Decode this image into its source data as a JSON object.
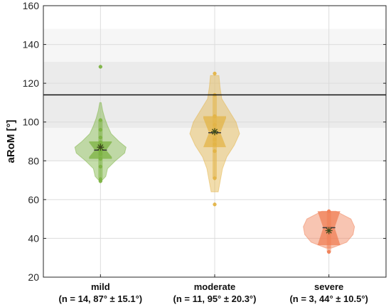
{
  "chart_data": {
    "type": "violin",
    "ylabel": "aRoM [°]",
    "ylim": [
      20,
      160
    ],
    "yticks": [
      20,
      40,
      60,
      80,
      100,
      120,
      140,
      160
    ],
    "grid": true,
    "reference_line": 114,
    "reference_bands": [
      {
        "from": 97,
        "to": 131,
        "color": "#ebebeb"
      },
      {
        "from": 80,
        "to": 148,
        "color": "#f6f6f6"
      }
    ],
    "categories": [
      {
        "name": "mild",
        "stats_label": "(n = 14, 87° ± 15.1°)",
        "color": "#7cb342",
        "median": 85.5,
        "mean": 87,
        "q1": 81,
        "q3": 90,
        "median_ci": [
          82,
          89.5
        ],
        "whisker": [
          71,
          101
        ],
        "points": [
          69.5,
          70.5,
          77,
          81,
          83.5,
          85,
          86,
          87,
          88.5,
          89.5,
          92,
          96,
          101,
          128.5
        ],
        "density": [
          [
            70,
            0.05
          ],
          [
            72,
            0.15
          ],
          [
            76,
            0.2
          ],
          [
            80,
            0.42
          ],
          [
            84,
            0.68
          ],
          [
            87,
            0.72
          ],
          [
            90,
            0.52
          ],
          [
            94,
            0.3
          ],
          [
            98,
            0.2
          ],
          [
            102,
            0.12
          ],
          [
            106,
            0.06
          ],
          [
            110,
            0.02
          ]
        ]
      },
      {
        "name": "moderate",
        "stats_label": "(n = 11, 95° ± 20.3°)",
        "color": "#e3b447",
        "median": 94.5,
        "mean": 95,
        "q1": 88,
        "q3": 103,
        "median_ci": [
          87,
          102
        ],
        "whisker": [
          71,
          114
        ],
        "points": [
          57.5,
          71,
          85,
          88.5,
          91,
          94.5,
          96,
          98.5,
          103,
          114,
          125
        ],
        "density": [
          [
            64,
            0.1
          ],
          [
            70,
            0.16
          ],
          [
            76,
            0.22
          ],
          [
            82,
            0.34
          ],
          [
            88,
            0.55
          ],
          [
            94,
            0.7
          ],
          [
            100,
            0.6
          ],
          [
            106,
            0.4
          ],
          [
            112,
            0.2
          ],
          [
            118,
            0.15
          ],
          [
            124,
            0.12
          ]
        ]
      },
      {
        "name": "severe",
        "stats_label": "(n = 3, 44° ± 10.5°)",
        "color": "#f07f55",
        "median": 45.5,
        "mean": 44,
        "q1": 39,
        "q3": 50,
        "median_ci": [
          36.5,
          54
        ],
        "whisker": [
          33,
          54
        ],
        "points": [
          33,
          45,
          54
        ],
        "density": [
          [
            35,
            0.08
          ],
          [
            38,
            0.5
          ],
          [
            42,
            0.68
          ],
          [
            46,
            0.72
          ],
          [
            50,
            0.62
          ],
          [
            54,
            0.2
          ]
        ]
      }
    ]
  }
}
